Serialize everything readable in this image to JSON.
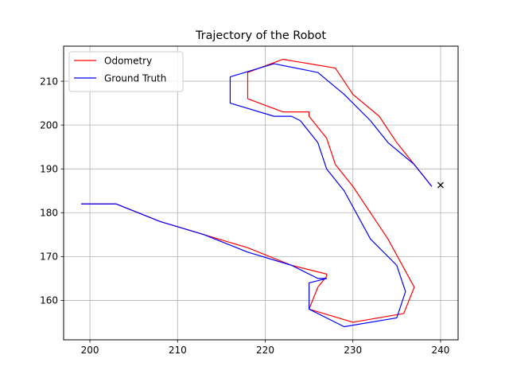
{
  "chart_data": {
    "type": "line",
    "title": "Trajectory of the Robot",
    "xlabel": "",
    "ylabel": "",
    "xlim": [
      197,
      242
    ],
    "ylim": [
      151,
      218
    ],
    "x_ticks": [
      200,
      210,
      220,
      230,
      240
    ],
    "y_ticks": [
      160,
      170,
      180,
      190,
      200,
      210
    ],
    "grid": true,
    "legend_position": "top-left",
    "series": [
      {
        "name": "Odometry",
        "color": "#ff0000",
        "x": [
          199,
          203,
          208,
          213,
          218,
          223,
          227,
          227,
          226,
          225,
          230,
          235.8,
          237,
          234,
          230,
          228,
          227,
          225,
          225,
          222,
          218,
          218,
          222,
          228,
          230,
          233,
          235,
          237,
          239
        ],
        "y": [
          182,
          182,
          178,
          175,
          172,
          168,
          166,
          165.5,
          163,
          158,
          155,
          157,
          163,
          174,
          186,
          191,
          197,
          202,
          203,
          203,
          206,
          212,
          215,
          213,
          207,
          202,
          196,
          191,
          186
        ]
      },
      {
        "name": "Ground Truth",
        "color": "#0000ff",
        "x": [
          199,
          203,
          208,
          213,
          218,
          223,
          226,
          227,
          225,
          225,
          229,
          235,
          236,
          235,
          232,
          229,
          227,
          226,
          224,
          223,
          221,
          216,
          216,
          221,
          226,
          229,
          232,
          234,
          237,
          239
        ],
        "y": [
          182,
          182,
          178,
          175,
          171,
          168,
          165,
          165,
          164,
          158,
          154,
          156,
          162,
          168,
          174,
          185,
          190,
          196,
          201,
          202,
          202,
          205,
          211,
          214,
          212,
          207,
          201,
          196,
          191,
          186
        ]
      }
    ],
    "markers": [
      {
        "symbol": "×",
        "x": 240,
        "y": 186.3,
        "color": "#000000"
      }
    ]
  }
}
